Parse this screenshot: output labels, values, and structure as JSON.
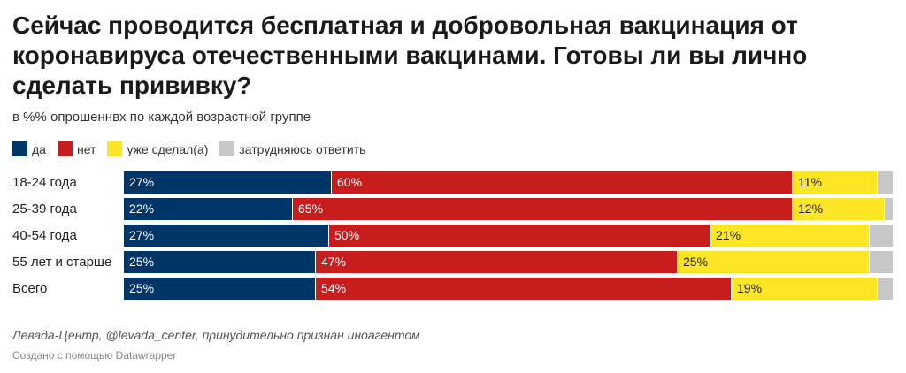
{
  "title": "Сейчас проводится бесплатная и добровольная вакцинация от коронавируса отечественными вакцинами. Готовы ли вы лично сделать прививку?",
  "subtitle": "в %% опрошеннвх по каждой возрастной группе",
  "source": "Левада-Центр, @levada_center, принудительно признан иноагентом",
  "credit": "Создано с помощью Datawrapper",
  "colors": {
    "yes": "#003567",
    "no": "#c71e1d",
    "done": "#fde626",
    "unsure": "#c8c8c8"
  },
  "chart_data": {
    "type": "bar",
    "orientation": "horizontal",
    "stacked": true,
    "title": "Сейчас проводится бесплатная и добровольная вакцинация от коронавируса отечественными вакцинами. Готовы ли вы лично сделать прививку?",
    "subtitle": "в %% опрошеннвх по каждой возрастной группе",
    "categories": [
      "18-24 года",
      "25-39 года",
      "40-54 года",
      "55 лет и старше",
      "Всего"
    ],
    "series": [
      {
        "name": "да",
        "color": "#003567",
        "values": [
          27,
          22,
          27,
          25,
          25
        ],
        "labels": [
          "27%",
          "22%",
          "27%",
          "25%",
          "25%"
        ]
      },
      {
        "name": "нет",
        "color": "#c71e1d",
        "values": [
          60,
          65,
          50,
          47,
          54
        ],
        "labels": [
          "60%",
          "65%",
          "50%",
          "47%",
          "54%"
        ]
      },
      {
        "name": "уже сделал(а)",
        "color": "#fde626",
        "values": [
          11,
          12,
          21,
          25,
          19
        ],
        "labels": [
          "11%",
          "12%",
          "21%",
          "25%",
          "19%"
        ]
      },
      {
        "name": "затрудняюсь ответить",
        "color": "#c8c8c8",
        "values": [
          2,
          1,
          3,
          3,
          2
        ],
        "labels": [
          "",
          "",
          "",
          "",
          ""
        ]
      }
    ],
    "legend_position": "top-left",
    "xlim": [
      0,
      100
    ],
    "grid": false
  }
}
